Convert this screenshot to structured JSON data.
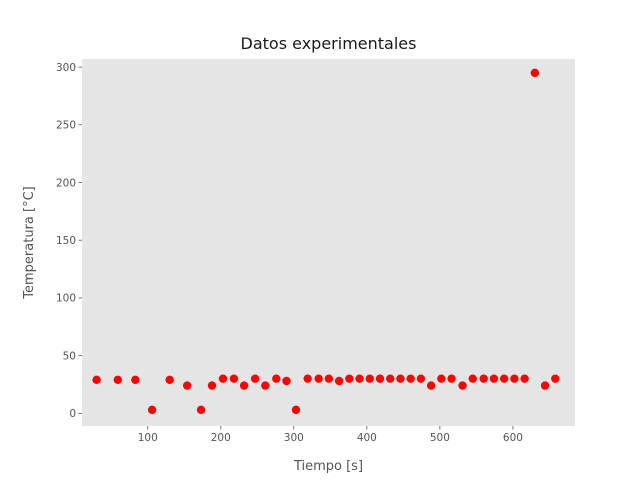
{
  "chart_data": {
    "type": "scatter",
    "title": "Datos experimentales",
    "xlabel": "Tiempo [s]",
    "ylabel": "Temperatura [°C]",
    "xlim": [
      10,
      685
    ],
    "ylim": [
      -11,
      307
    ],
    "xticks": [
      100,
      200,
      300,
      400,
      500,
      600
    ],
    "yticks": [
      0,
      50,
      100,
      150,
      200,
      250,
      300
    ],
    "grid": false,
    "background_color": "#e5e5e5",
    "marker_color": "#ff0000",
    "points": [
      {
        "x": 30,
        "y": 29
      },
      {
        "x": 59,
        "y": 29
      },
      {
        "x": 83,
        "y": 29
      },
      {
        "x": 106,
        "y": 3
      },
      {
        "x": 130,
        "y": 29
      },
      {
        "x": 154,
        "y": 24
      },
      {
        "x": 173,
        "y": 3
      },
      {
        "x": 188,
        "y": 24
      },
      {
        "x": 203,
        "y": 30
      },
      {
        "x": 218,
        "y": 30
      },
      {
        "x": 232,
        "y": 24
      },
      {
        "x": 247,
        "y": 30
      },
      {
        "x": 261,
        "y": 24
      },
      {
        "x": 276,
        "y": 30
      },
      {
        "x": 290,
        "y": 28
      },
      {
        "x": 303,
        "y": 3
      },
      {
        "x": 319,
        "y": 30
      },
      {
        "x": 334,
        "y": 30
      },
      {
        "x": 348,
        "y": 30
      },
      {
        "x": 362,
        "y": 28
      },
      {
        "x": 376,
        "y": 30
      },
      {
        "x": 390,
        "y": 30
      },
      {
        "x": 404,
        "y": 30
      },
      {
        "x": 418,
        "y": 30
      },
      {
        "x": 432,
        "y": 30
      },
      {
        "x": 446,
        "y": 30
      },
      {
        "x": 460,
        "y": 30
      },
      {
        "x": 474,
        "y": 30
      },
      {
        "x": 488,
        "y": 24
      },
      {
        "x": 502,
        "y": 30
      },
      {
        "x": 516,
        "y": 30
      },
      {
        "x": 531,
        "y": 24
      },
      {
        "x": 545,
        "y": 30
      },
      {
        "x": 560,
        "y": 30
      },
      {
        "x": 574,
        "y": 30
      },
      {
        "x": 588,
        "y": 30
      },
      {
        "x": 602,
        "y": 30
      },
      {
        "x": 616,
        "y": 30
      },
      {
        "x": 630,
        "y": 295
      },
      {
        "x": 644,
        "y": 24
      },
      {
        "x": 658,
        "y": 30
      }
    ]
  }
}
